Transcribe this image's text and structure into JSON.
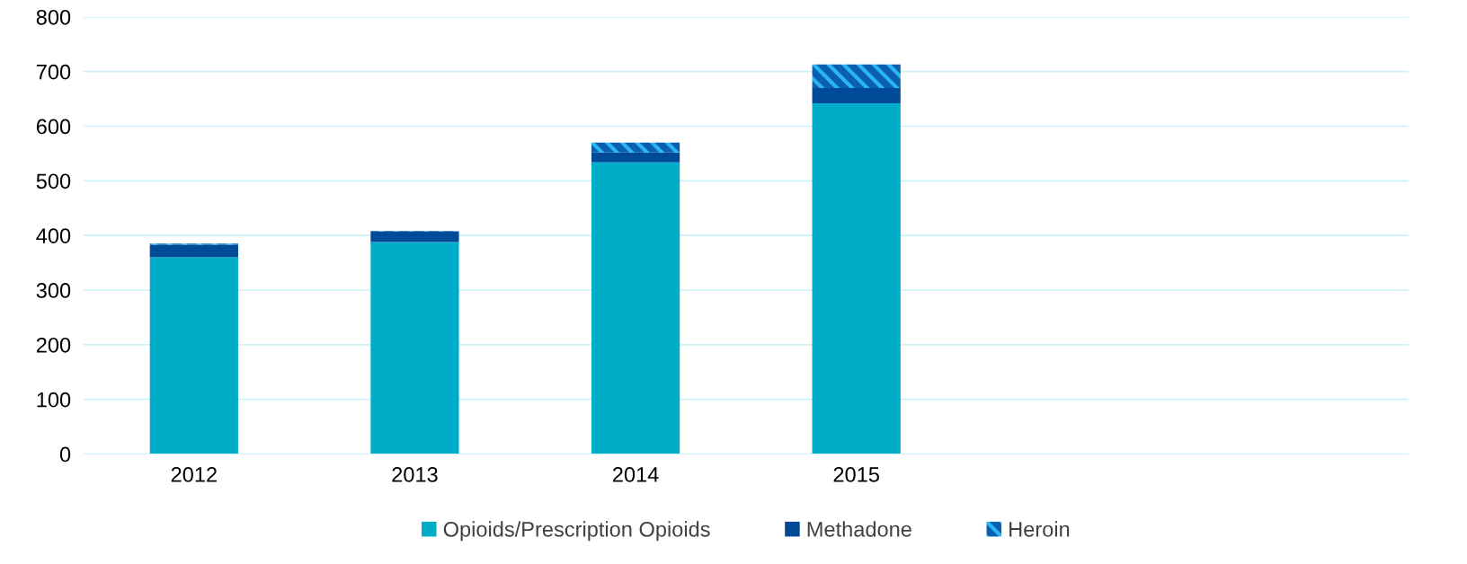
{
  "chart_data": {
    "type": "bar",
    "stacked": true,
    "categories": [
      "2012",
      "2013",
      "2014",
      "2015",
      null,
      null
    ],
    "series": [
      {
        "name": "Opioids/Prescription Opioids",
        "color": "#00adc8",
        "values": [
          360,
          388,
          534,
          642,
          null,
          null
        ]
      },
      {
        "name": "Methadone",
        "color": "#004b98",
        "values": [
          23,
          19,
          18,
          28,
          null,
          null
        ]
      },
      {
        "name": "Heroin",
        "color": "#0a5fb0",
        "values": [
          2,
          1,
          18,
          43,
          null,
          null
        ]
      }
    ],
    "ylim": [
      0,
      800
    ],
    "yticks": [
      0,
      100,
      200,
      300,
      400,
      500,
      600,
      700,
      800
    ],
    "grid": "y",
    "legend": "bottom"
  }
}
